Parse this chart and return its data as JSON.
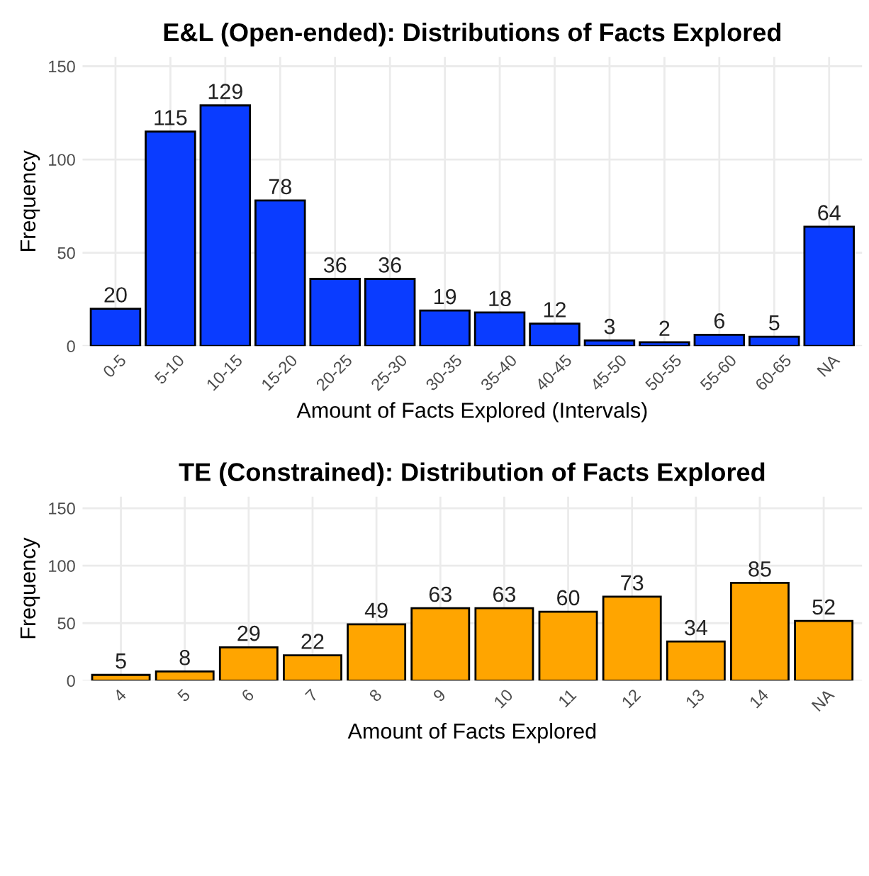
{
  "chart_data": [
    {
      "type": "bar",
      "title": "E&L (Open-ended): Distributions of Facts Explored",
      "xlabel": "Amount of Facts Explored (Intervals)",
      "ylabel": "Frequency",
      "categories": [
        "0-5",
        "5-10",
        "10-15",
        "15-20",
        "20-25",
        "25-30",
        "30-35",
        "35-40",
        "40-45",
        "45-50",
        "50-55",
        "55-60",
        "60-65",
        "NA"
      ],
      "values": [
        20,
        115,
        129,
        78,
        36,
        36,
        19,
        18,
        12,
        3,
        2,
        6,
        5,
        64
      ],
      "color": "#0a3cff",
      "ylim": [
        0,
        155
      ],
      "yticks": [
        0,
        50,
        100,
        150
      ],
      "grid": true,
      "data_labels": true
    },
    {
      "type": "bar",
      "title": "TE (Constrained): Distribution of Facts Explored",
      "xlabel": "Amount of Facts Explored",
      "ylabel": "Frequency",
      "categories": [
        "4",
        "5",
        "6",
        "7",
        "8",
        "9",
        "10",
        "11",
        "12",
        "13",
        "14",
        "NA"
      ],
      "values": [
        5,
        8,
        29,
        22,
        49,
        63,
        63,
        60,
        73,
        34,
        85,
        52
      ],
      "color": "#ffa500",
      "ylim": [
        0,
        160
      ],
      "yticks": [
        0,
        50,
        100,
        150
      ],
      "grid": true,
      "data_labels": true
    }
  ]
}
